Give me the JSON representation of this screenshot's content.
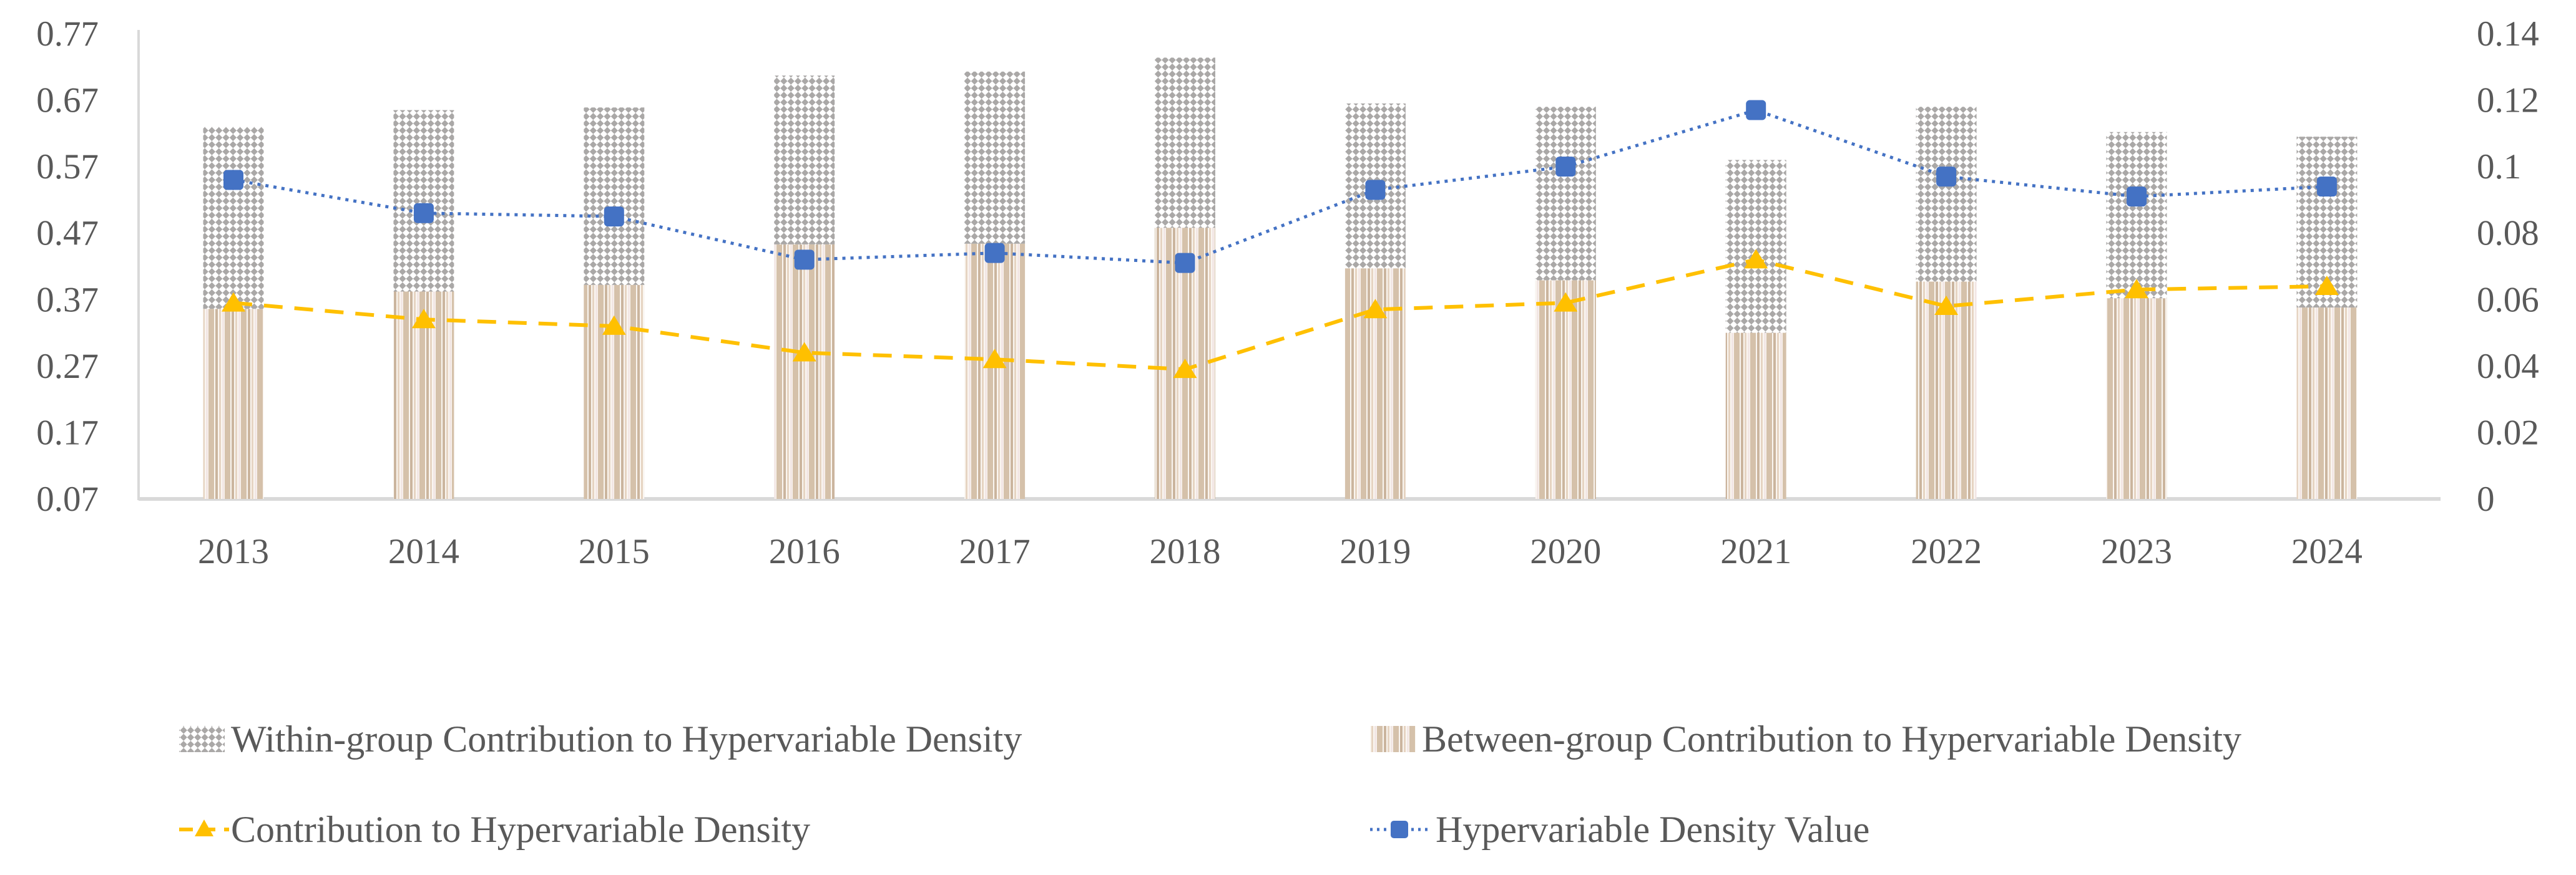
{
  "chart_data": {
    "type": "combo-stacked-bar-line",
    "title": "",
    "categories": [
      "2013",
      "2014",
      "2015",
      "2016",
      "2017",
      "2018",
      "2019",
      "2020",
      "2021",
      "2022",
      "2023",
      "2024"
    ],
    "series": [
      {
        "name": "Within-group Contribution to Hypervariable Density",
        "type": "bar",
        "stack_position": "top",
        "axis": "left",
        "pattern": "gray-diagonal-checker",
        "values": [
          0.274,
          0.273,
          0.267,
          0.254,
          0.259,
          0.256,
          0.248,
          0.261,
          0.26,
          0.263,
          0.25,
          0.257
        ]
      },
      {
        "name": "Between-group Contribution to Hypervariable Density",
        "type": "bar",
        "stack_position": "bottom",
        "axis": "left",
        "pattern": "tan-vertical-stripes",
        "values": [
          0.356,
          0.382,
          0.392,
          0.453,
          0.454,
          0.478,
          0.417,
          0.399,
          0.32,
          0.397,
          0.372,
          0.358
        ]
      },
      {
        "name": "Contribution to Hypervariable Density",
        "type": "line",
        "axis": "right",
        "color": "#FFC000",
        "line_style": "dashed",
        "marker": "triangle",
        "values": [
          0.059,
          0.054,
          0.052,
          0.044,
          0.042,
          0.039,
          0.057,
          0.059,
          0.072,
          0.058,
          0.063,
          0.064
        ]
      },
      {
        "name": "Hypervariable Density Value",
        "type": "line",
        "axis": "right",
        "color": "#4472C4",
        "line_style": "dotted",
        "marker": "square",
        "values": [
          0.096,
          0.086,
          0.085,
          0.072,
          0.074,
          0.071,
          0.093,
          0.1,
          0.117,
          0.097,
          0.091,
          0.094
        ]
      }
    ],
    "left_axis": {
      "ticks": [
        "0.77",
        "0.67",
        "0.57",
        "0.47",
        "0.37",
        "0.27",
        "0.17",
        "0.07"
      ],
      "min": 0.07,
      "max": 0.77
    },
    "right_axis": {
      "ticks": [
        "0.14",
        "0.12",
        "0.1",
        "0.08",
        "0.06",
        "0.04",
        "0.02",
        "0"
      ],
      "min": 0,
      "max": 0.14
    },
    "xlabel": "",
    "ylabel": "",
    "grid": false,
    "legend_position": "bottom",
    "legend": [
      "Within-group Contribution to Hypervariable Density",
      "Between-group Contribution to Hypervariable Density",
      "Contribution to Hypervariable Density",
      "Hypervariable Density Value"
    ],
    "colors": {
      "text": "#595959",
      "axis_line": "#d9d9d9",
      "line_blue": "#4472C4",
      "line_gold": "#FFC000",
      "checker_gray": "#aaa8a7",
      "stripe_tan_1": "#d5c1aa",
      "stripe_tan_2": "#cbb59e",
      "stripe_light_1": "#faf6f1",
      "stripe_light_2": "#f2e6e4",
      "stripe_mid": "#e6d4c2",
      "background": "#ffffff"
    }
  }
}
